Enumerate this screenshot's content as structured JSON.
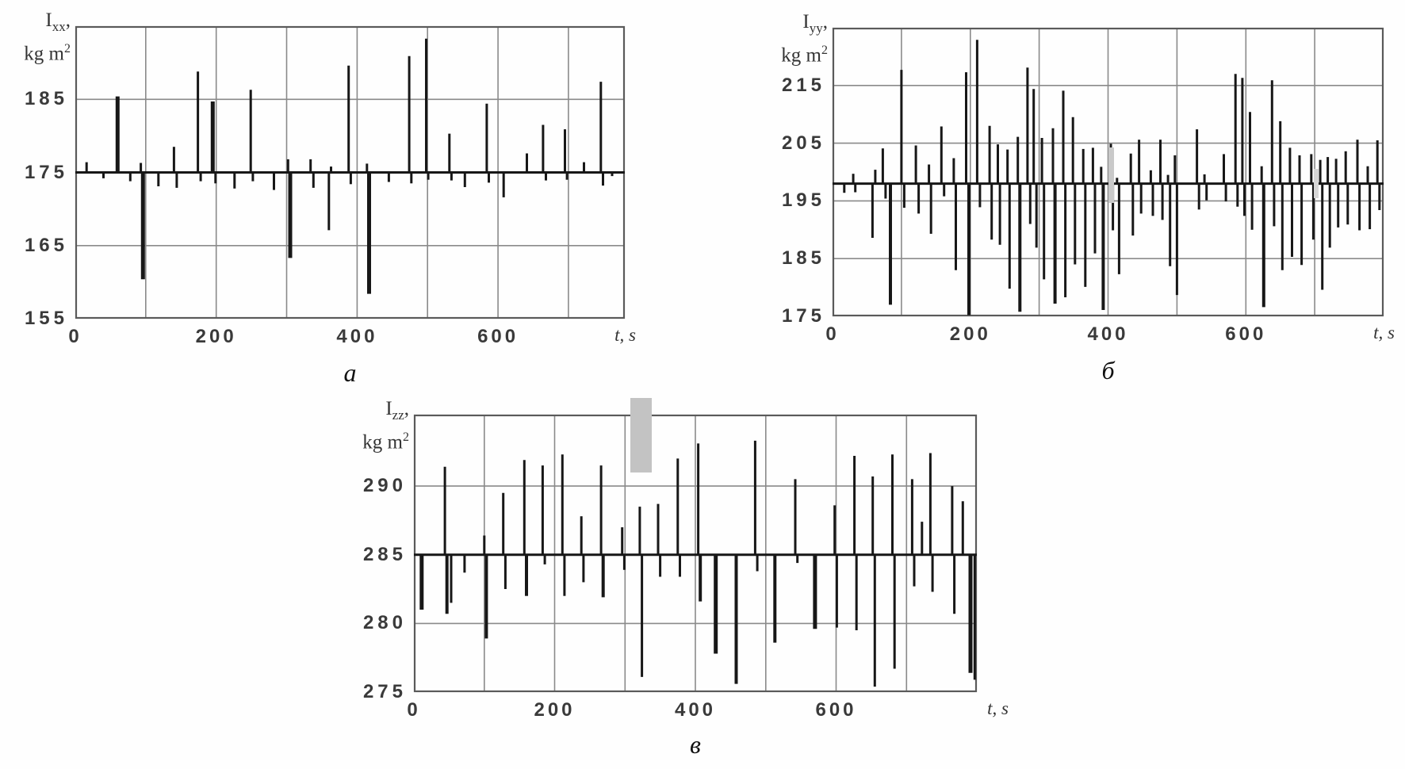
{
  "page": {
    "background": "#fefefe"
  },
  "colors": {
    "line": "#171717",
    "grid": "#8a8a8a",
    "border": "#5a5a5a",
    "label": "#3a3a3a"
  },
  "chart_data": [
    {
      "id": "a",
      "type": "line",
      "caption": "a",
      "title": {
        "line1_symbol": "I",
        "line1_sub": "xx",
        "line1_suffix": ",",
        "line2": "kg m",
        "line2_sup": "2"
      },
      "x_axis": {
        "min": 0,
        "max": 780,
        "grid_step": 100,
        "unit_label": "t, s",
        "ticks": [
          {
            "value": 0,
            "label": "0"
          },
          {
            "value": 200,
            "label": "200"
          },
          {
            "value": 400,
            "label": "400"
          },
          {
            "value": 600,
            "label": "600"
          }
        ]
      },
      "y_axis": {
        "min": 155,
        "max": 195,
        "ticks": [
          {
            "value": 185,
            "label": "185"
          },
          {
            "value": 175,
            "label": "175"
          },
          {
            "value": 165,
            "label": "165"
          },
          {
            "value": 155,
            "label": "155"
          }
        ]
      },
      "baseline": 175,
      "spikes": [
        [
          16,
          176.4
        ],
        [
          40,
          174.2
        ],
        [
          60,
          185.4,
          5
        ],
        [
          78,
          173.8
        ],
        [
          93,
          176.3
        ],
        [
          96,
          160.4,
          5
        ],
        [
          118,
          173.1
        ],
        [
          140,
          178.5
        ],
        [
          144,
          172.9
        ],
        [
          174,
          188.8
        ],
        [
          178,
          173.8
        ],
        [
          195,
          184.7,
          5
        ],
        [
          199,
          173.5
        ],
        [
          226,
          172.8
        ],
        [
          249,
          186.3
        ],
        [
          252,
          173.8
        ],
        [
          282,
          172.6
        ],
        [
          302,
          176.8
        ],
        [
          305,
          163.3,
          5
        ],
        [
          334,
          176.8
        ],
        [
          338,
          172.9
        ],
        [
          360,
          167.1
        ],
        [
          363,
          175.8
        ],
        [
          388,
          189.6
        ],
        [
          391,
          173.4
        ],
        [
          414,
          176.2
        ],
        [
          417,
          158.4,
          5
        ],
        [
          445,
          173.7
        ],
        [
          474,
          190.9
        ],
        [
          477,
          173.5
        ],
        [
          498,
          193.3
        ],
        [
          501,
          174
        ],
        [
          531,
          180.3
        ],
        [
          534,
          173.9
        ],
        [
          553,
          173
        ],
        [
          584,
          184.4
        ],
        [
          587,
          173.6
        ],
        [
          608,
          171.6
        ],
        [
          641,
          177.6
        ],
        [
          664,
          181.5
        ],
        [
          668,
          173.9
        ],
        [
          695,
          180.9
        ],
        [
          698,
          174
        ],
        [
          722,
          176.4
        ],
        [
          746,
          187.4
        ],
        [
          749,
          173.2
        ],
        [
          762,
          174.5
        ]
      ],
      "artifacts": []
    },
    {
      "id": "b",
      "type": "line",
      "caption": "б",
      "title": {
        "line1_symbol": "I",
        "line1_sub": "yy",
        "line1_suffix": ",",
        "line2": "kg m",
        "line2_sup": "2"
      },
      "x_axis": {
        "min": 0,
        "max": 800,
        "grid_step": 100,
        "unit_label": "t, s",
        "ticks": [
          {
            "value": 0,
            "label": "0"
          },
          {
            "value": 200,
            "label": "200"
          },
          {
            "value": 400,
            "label": "400"
          },
          {
            "value": 600,
            "label": "600"
          }
        ]
      },
      "y_axis": {
        "min": 175,
        "max": 225,
        "ticks": [
          {
            "value": 215,
            "label": "215"
          },
          {
            "value": 205,
            "label": "205"
          },
          {
            "value": 195,
            "label": "195"
          },
          {
            "value": 185,
            "label": "185"
          },
          {
            "value": 175,
            "label": "175"
          }
        ]
      },
      "baseline": 198,
      "spikes": [
        [
          17,
          196.4
        ],
        [
          30,
          199.7
        ],
        [
          33,
          196.5
        ],
        [
          58,
          188.6
        ],
        [
          62,
          200.4
        ],
        [
          73,
          204.1
        ],
        [
          77,
          195.4
        ],
        [
          84,
          177,
          4
        ],
        [
          100,
          217.7
        ],
        [
          104,
          193.8
        ],
        [
          121,
          204.6
        ],
        [
          125,
          192.8
        ],
        [
          140,
          201.3
        ],
        [
          143,
          189.3
        ],
        [
          158,
          207.9
        ],
        [
          162,
          195.8
        ],
        [
          176,
          202.4
        ],
        [
          179,
          183
        ],
        [
          194,
          217.3
        ],
        [
          198,
          175.2,
          4
        ],
        [
          210,
          222.9
        ],
        [
          214,
          193.9
        ],
        [
          228,
          208
        ],
        [
          231,
          188.3
        ],
        [
          240,
          204.8
        ],
        [
          243,
          187.4
        ],
        [
          254,
          203.9
        ],
        [
          257,
          179.8
        ],
        [
          269,
          206.1
        ],
        [
          272,
          175.8,
          4
        ],
        [
          283,
          218.1
        ],
        [
          287,
          191
        ],
        [
          292,
          214.4
        ],
        [
          296,
          186.9
        ],
        [
          304,
          205.9
        ],
        [
          307,
          181.4
        ],
        [
          320,
          207.6
        ],
        [
          323,
          177.2,
          4
        ],
        [
          335,
          214.1
        ],
        [
          338,
          178.3
        ],
        [
          349,
          209.5
        ],
        [
          352,
          184
        ],
        [
          364,
          204
        ],
        [
          367,
          180.1
        ],
        [
          378,
          204.2
        ],
        [
          381,
          185.9
        ],
        [
          390,
          200.9
        ],
        [
          393,
          176.1,
          4
        ],
        [
          404,
          204.9
        ],
        [
          407,
          189.9
        ],
        [
          413,
          199
        ],
        [
          416,
          182.3
        ],
        [
          433,
          203.2
        ],
        [
          436,
          189
        ],
        [
          445,
          205.6
        ],
        [
          448,
          192.8
        ],
        [
          462,
          200.3
        ],
        [
          465,
          192.4
        ],
        [
          476,
          205.6
        ],
        [
          479,
          191.7
        ],
        [
          487,
          199.5
        ],
        [
          490,
          183.7
        ],
        [
          497,
          202.9
        ],
        [
          500,
          178.7
        ],
        [
          529,
          207.4
        ],
        [
          532,
          193.5
        ],
        [
          540,
          199.6
        ],
        [
          543,
          195.1
        ],
        [
          568,
          203.1
        ],
        [
          571,
          194.9
        ],
        [
          585,
          217
        ],
        [
          588,
          194
        ],
        [
          595,
          216.3
        ],
        [
          598,
          192.4
        ],
        [
          606,
          210.4
        ],
        [
          609,
          190
        ],
        [
          623,
          201
        ],
        [
          626,
          176.6,
          4
        ],
        [
          638,
          215.9
        ],
        [
          641,
          190.6
        ],
        [
          650,
          208.8
        ],
        [
          653,
          183
        ],
        [
          664,
          204.2
        ],
        [
          667,
          185.3
        ],
        [
          678,
          202.9
        ],
        [
          681,
          183.9
        ],
        [
          695,
          203.1
        ],
        [
          698,
          188.3
        ],
        [
          708,
          202.1
        ],
        [
          711,
          179.6
        ],
        [
          719,
          202.6
        ],
        [
          722,
          186.9
        ],
        [
          731,
          202.3
        ],
        [
          734,
          190.4
        ],
        [
          745,
          203.6
        ],
        [
          748,
          190.9
        ],
        [
          762,
          205.6
        ],
        [
          765,
          189.9
        ],
        [
          777,
          201
        ],
        [
          780,
          190.1
        ],
        [
          791,
          205.5
        ],
        [
          794,
          193.4
        ]
      ],
      "artifacts": [
        {
          "t": [
            401,
            409
          ],
          "v": [
            194.7,
            204.2
          ],
          "color": "#c9c9c9",
          "layer": "back"
        },
        {
          "t": [
            699,
            706
          ],
          "v": [
            195.4,
            200.5
          ],
          "color": "#d6d6d6",
          "layer": "back"
        }
      ]
    },
    {
      "id": "v",
      "type": "line",
      "caption": "в",
      "title": {
        "line1_symbol": "I",
        "line1_sub": "zz",
        "line1_suffix": ",",
        "line2": "kg m",
        "line2_sup": "2"
      },
      "x_axis": {
        "min": 0,
        "max": 800,
        "grid_step": 100,
        "unit_label": "t, s",
        "ticks": [
          {
            "value": 0,
            "label": "0"
          },
          {
            "value": 200,
            "label": "200"
          },
          {
            "value": 400,
            "label": "400"
          },
          {
            "value": 600,
            "label": "600"
          }
        ]
      },
      "y_axis": {
        "min": 275,
        "max": 295.2,
        "ticks": [
          {
            "value": 290,
            "label": "290"
          },
          {
            "value": 285,
            "label": "285"
          },
          {
            "value": 280,
            "label": "280"
          },
          {
            "value": 275,
            "label": "275"
          }
        ]
      },
      "baseline": 285,
      "spikes": [
        [
          11,
          281,
          5
        ],
        [
          44,
          291.4
        ],
        [
          47,
          280.7,
          4
        ],
        [
          53,
          281.5
        ],
        [
          72,
          283.7
        ],
        [
          100,
          286.4
        ],
        [
          103,
          278.9,
          4
        ],
        [
          127,
          289.5
        ],
        [
          130,
          282.5
        ],
        [
          157,
          291.9
        ],
        [
          160,
          282,
          4
        ],
        [
          183,
          291.5
        ],
        [
          186,
          284.3
        ],
        [
          211,
          292.3
        ],
        [
          214,
          282
        ],
        [
          238,
          287.8
        ],
        [
          241,
          283
        ],
        [
          266,
          291.5
        ],
        [
          269,
          281.9,
          4
        ],
        [
          296,
          287
        ],
        [
          299,
          283.9
        ],
        [
          321,
          288.5
        ],
        [
          324,
          276.1
        ],
        [
          347,
          288.7
        ],
        [
          350,
          283.4
        ],
        [
          375,
          292
        ],
        [
          378,
          283.4
        ],
        [
          404,
          293.1
        ],
        [
          407,
          281.6,
          4
        ],
        [
          429,
          277.8,
          5
        ],
        [
          458,
          275.6,
          4
        ],
        [
          485,
          293.3
        ],
        [
          488,
          283.8
        ],
        [
          513,
          278.6,
          4
        ],
        [
          542,
          290.5
        ],
        [
          545,
          284.4
        ],
        [
          570,
          279.6,
          5
        ],
        [
          598,
          288.6
        ],
        [
          601,
          279.7
        ],
        [
          626,
          292.2
        ],
        [
          629,
          279.5
        ],
        [
          652,
          290.7
        ],
        [
          655,
          275.4
        ],
        [
          680,
          292.3
        ],
        [
          683,
          276.7
        ],
        [
          708,
          290.5
        ],
        [
          711,
          282.7
        ],
        [
          722,
          287.4
        ],
        [
          734,
          292.4
        ],
        [
          737,
          282.3
        ],
        [
          765,
          290
        ],
        [
          768,
          280.7
        ],
        [
          780,
          288.9
        ],
        [
          791,
          276.4,
          5
        ],
        [
          797,
          275.9
        ]
      ],
      "artifacts": [
        {
          "t": [
            307,
            338
          ],
          "v": [
            291.0,
            296.4
          ],
          "color": "#c3c3c3",
          "layer": "front"
        }
      ]
    }
  ]
}
